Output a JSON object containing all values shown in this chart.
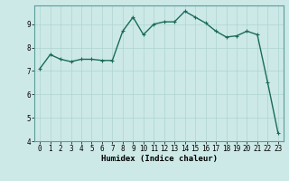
{
  "x": [
    0,
    1,
    2,
    3,
    4,
    5,
    6,
    7,
    8,
    9,
    10,
    11,
    12,
    13,
    14,
    15,
    16,
    17,
    18,
    19,
    20,
    21,
    22,
    23
  ],
  "y": [
    7.1,
    7.7,
    7.5,
    7.4,
    7.5,
    7.5,
    7.45,
    7.45,
    8.7,
    9.3,
    8.55,
    9.0,
    9.1,
    9.1,
    9.55,
    9.3,
    9.05,
    8.7,
    8.45,
    8.5,
    8.7,
    8.55,
    6.5,
    4.35
  ],
  "line_color": "#1a6b5a",
  "marker": "+",
  "marker_size": 3,
  "bg_color": "#cce9e7",
  "grid_color": "#aed4d1",
  "xlabel": "Humidex (Indice chaleur)",
  "ylim": [
    4,
    9.8
  ],
  "xlim": [
    -0.5,
    23.5
  ],
  "yticks": [
    4,
    5,
    6,
    7,
    8,
    9
  ],
  "xticks": [
    0,
    1,
    2,
    3,
    4,
    5,
    6,
    7,
    8,
    9,
    10,
    11,
    12,
    13,
    14,
    15,
    16,
    17,
    18,
    19,
    20,
    21,
    22,
    23
  ],
  "tick_fontsize": 5.5,
  "xlabel_fontsize": 6.5,
  "linewidth": 1.0,
  "spine_color": "#5a9e99"
}
